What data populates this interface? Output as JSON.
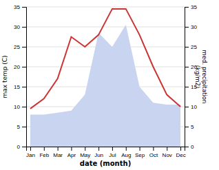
{
  "chart_data": {
    "type": "line",
    "xlabel": "date (month)",
    "ylabel": "max temp (C)",
    "y2label": "med. precipitation\n(kg/m2)",
    "categories": [
      "Jan",
      "Feb",
      "Mar",
      "Apr",
      "May",
      "Jun",
      "Jul",
      "Aug",
      "Sep",
      "Oct",
      "Nov",
      "Dec"
    ],
    "series": [
      {
        "type": "area",
        "axis": "y2",
        "color": "#c8d4f0",
        "values": [
          8.0,
          8.0,
          8.5,
          9.0,
          13.0,
          28.5,
          25.0,
          30.5,
          15.0,
          11.0,
          10.5,
          10.5
        ]
      },
      {
        "type": "line",
        "color": "#cc3333",
        "values": [
          9.5,
          12.0,
          17.0,
          27.5,
          25.0,
          28.0,
          34.5,
          34.5,
          28.0,
          20.0,
          13.0,
          10.0
        ]
      }
    ],
    "ylim": [
      0,
      35
    ],
    "yticks": [
      0,
      5,
      10,
      15,
      20,
      25,
      30,
      35
    ],
    "y2lim": [
      0,
      35
    ],
    "y2ticks": [
      0,
      5,
      10,
      15,
      20,
      25,
      30,
      35
    ],
    "grid": true
  }
}
